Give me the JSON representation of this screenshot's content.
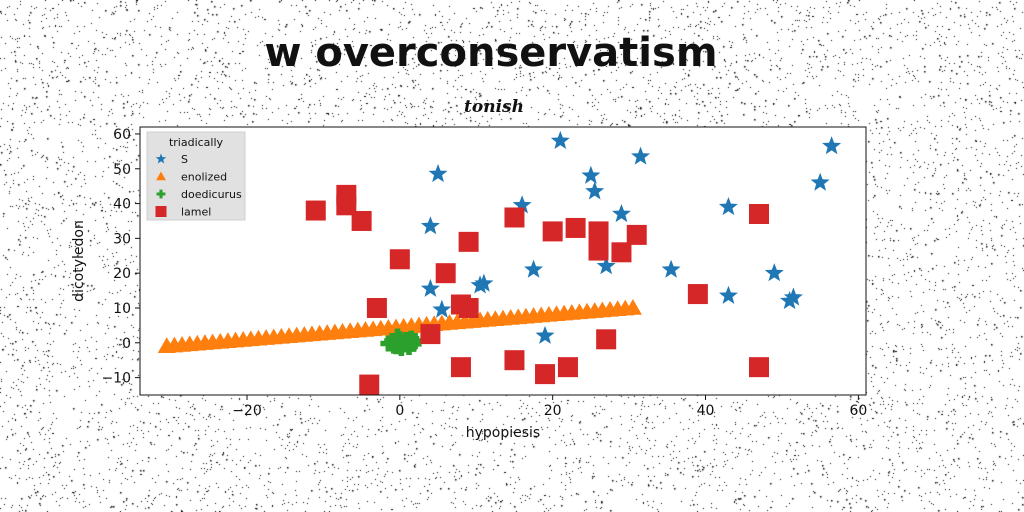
{
  "chart_data": {
    "type": "scatter",
    "title": "w overconservatism",
    "subtitle": "tonish",
    "xlabel": "hypopiesis",
    "ylabel": "dicotyledon",
    "xlim": [
      -34,
      61
    ],
    "ylim": [
      -15,
      62
    ],
    "xticks": [
      -20,
      0,
      20,
      40,
      60
    ],
    "yticks": [
      -10,
      0,
      10,
      20,
      30,
      40,
      50,
      60
    ],
    "xtick_labels": [
      "−20",
      "0",
      "20",
      "40",
      "60"
    ],
    "ytick_labels": [
      "−10",
      "0",
      "10",
      "20",
      "30",
      "40",
      "50",
      "60"
    ],
    "grid": false,
    "legend": {
      "title": "triadically",
      "placement": "top-left"
    },
    "series": [
      {
        "name": "S",
        "marker": "star",
        "color": "#1f77b4",
        "points": [
          [
            21,
            58
          ],
          [
            56.5,
            56.5
          ],
          [
            31.5,
            53.5
          ],
          [
            5,
            48.5
          ],
          [
            25,
            48
          ],
          [
            55,
            46
          ],
          [
            25.5,
            43.5
          ],
          [
            16,
            39.5
          ],
          [
            43,
            39
          ],
          [
            29,
            37
          ],
          [
            4,
            33.5
          ],
          [
            27,
            22
          ],
          [
            35.5,
            21
          ],
          [
            17.5,
            21
          ],
          [
            49,
            20
          ],
          [
            11,
            17
          ],
          [
            10.5,
            16.5
          ],
          [
            4,
            15.5
          ],
          [
            43,
            13.5
          ],
          [
            51.5,
            13
          ],
          [
            51,
            12
          ],
          [
            5.5,
            9.5
          ],
          [
            19,
            2
          ]
        ]
      },
      {
        "name": "enolized",
        "marker": "triangle",
        "color": "#ff7f0e",
        "line_from": [
          -30.5,
          -1
        ],
        "line_to": [
          30.5,
          10
        ],
        "count": 62
      },
      {
        "name": "doedicurus",
        "marker": "plus",
        "color": "#2ca02c",
        "points": [
          [
            -1,
            0.5
          ],
          [
            -0.5,
            -1
          ],
          [
            0,
            1
          ],
          [
            0.5,
            -0.5
          ],
          [
            1,
            0
          ],
          [
            1.5,
            1.2
          ],
          [
            -1.5,
            -0.2
          ],
          [
            0.2,
            -1.5
          ],
          [
            2,
            0.5
          ],
          [
            -0.3,
            1.8
          ],
          [
            1.2,
            -1.2
          ],
          [
            0.8,
            0.8
          ],
          [
            -0.8,
            -0.8
          ],
          [
            0,
            0
          ],
          [
            1.8,
            -0.3
          ]
        ]
      },
      {
        "name": "lamel",
        "marker": "square",
        "color": "#d62728",
        "points": [
          [
            -7,
            42.5
          ],
          [
            -7,
            39.5
          ],
          [
            -11,
            38
          ],
          [
            -5,
            35
          ],
          [
            47,
            37
          ],
          [
            15,
            36
          ],
          [
            20,
            32
          ],
          [
            23,
            33
          ],
          [
            26,
            32
          ],
          [
            31,
            31
          ],
          [
            9,
            29
          ],
          [
            29,
            26
          ],
          [
            26,
            26.5
          ],
          [
            0,
            24
          ],
          [
            6,
            20
          ],
          [
            39,
            14
          ],
          [
            -3,
            10
          ],
          [
            8,
            11
          ],
          [
            9,
            10
          ],
          [
            4,
            2.5
          ],
          [
            27,
            1
          ],
          [
            8,
            -7
          ],
          [
            15,
            -5
          ],
          [
            22,
            -7
          ],
          [
            19,
            -9
          ],
          [
            47,
            -7
          ],
          [
            -4,
            -12
          ]
        ]
      }
    ]
  }
}
